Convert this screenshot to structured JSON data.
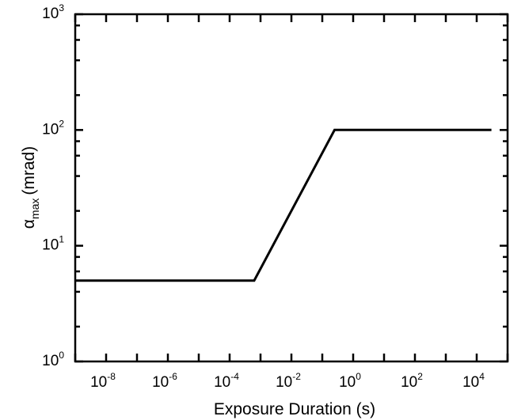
{
  "chart_data": {
    "type": "line",
    "title": "",
    "xlabel": "Exposure Duration (s)",
    "ylabel": {
      "symbol": "α",
      "subscript": "max",
      "unit": "(mrad)"
    },
    "xscale": "log",
    "yscale": "log",
    "xlim": [
      1e-09,
      100000.0
    ],
    "ylim": [
      1,
      1000
    ],
    "grid": false,
    "x_ticks": [
      {
        "base": "10",
        "exp": "-8",
        "value": 1e-08
      },
      {
        "base": "10",
        "exp": "-6",
        "value": 1e-06
      },
      {
        "base": "10",
        "exp": "-4",
        "value": 0.0001
      },
      {
        "base": "10",
        "exp": "-2",
        "value": 0.01
      },
      {
        "base": "10",
        "exp": "0",
        "value": 1
      },
      {
        "base": "10",
        "exp": "2",
        "value": 100
      },
      {
        "base": "10",
        "exp": "4",
        "value": 10000
      }
    ],
    "y_ticks": [
      {
        "base": "10",
        "exp": "0",
        "value": 1
      },
      {
        "base": "10",
        "exp": "1",
        "value": 10
      },
      {
        "base": "10",
        "exp": "2",
        "value": 100
      },
      {
        "base": "10",
        "exp": "3",
        "value": 1000
      }
    ],
    "series": [
      {
        "color": "#000000",
        "x": [
          1e-09,
          0.000625,
          0.25,
          30000
        ],
        "y": [
          5,
          5,
          100,
          100
        ]
      }
    ]
  }
}
